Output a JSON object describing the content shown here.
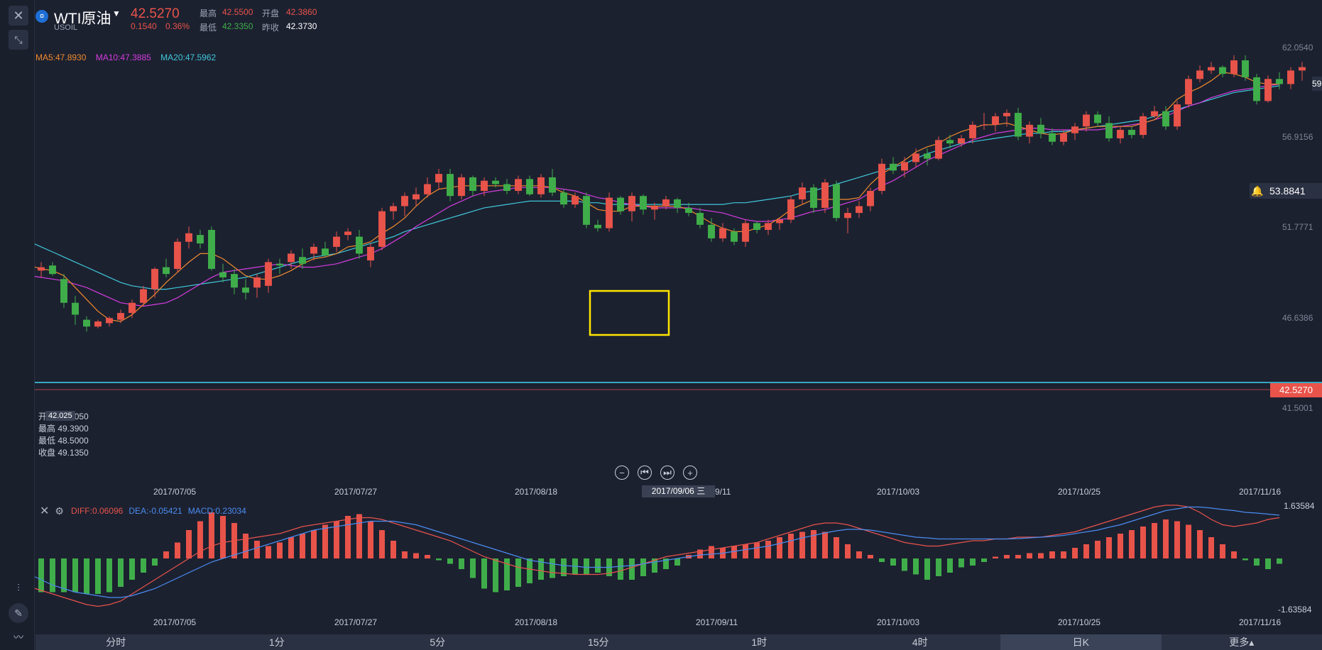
{
  "header": {
    "logo_glyph": "¤",
    "name": "WTI原油",
    "code": "USOIL",
    "price": "42.5270",
    "change": "0.1540",
    "change_pct": "0.36%",
    "stats": [
      {
        "label": "最高",
        "value": "42.5500",
        "color": "#e8534a"
      },
      {
        "label": "开盘",
        "value": "42.3860",
        "color": "#e8534a"
      },
      {
        "label": "最低",
        "value": "42.3350",
        "color": "#3fae4a"
      },
      {
        "label": "昨收",
        "value": "42.3730",
        "color": "#ffffff"
      }
    ]
  },
  "left_toolbar": {
    "icons": [
      "close-icon",
      "collapse-icon",
      "candle-style-icon",
      "pencil-icon",
      "indicator-icon"
    ]
  },
  "ma": {
    "ma5": "MA5:47.8930",
    "ma10": "MA10:47.3885",
    "ma20": "MA20:47.5962",
    "colors": {
      "ma5": "#f08a2c",
      "ma10": "#d53ce0",
      "ma20": "#3fc8da"
    }
  },
  "price_axis": [
    "62.0540",
    "56.9156",
    "51.7771",
    "46.6386",
    "41.5001"
  ],
  "current_price_tag": "42.5270",
  "alert_price": "53.8841",
  "top_tag": "59",
  "crosshair_ohlc": {
    "tag": "42.025",
    "lines": [
      "开盘 49.0050",
      "最高 49.3900",
      "最低 48.5000",
      "收盘 49.1350"
    ]
  },
  "date_axis": [
    "2017/07/05",
    "2017/07/27",
    "2017/08/18",
    "2017/09/11",
    "2017/10/03",
    "2017/10/25",
    "2017/11/16"
  ],
  "date_axis_visible_fragment": "9/11",
  "crosshair_date": "2017/09/06 三",
  "macd": {
    "diff": "DIFF:0.06096",
    "dea": "DEA:-0.05421",
    "macd": "MACD:0.23034",
    "axis_top": "1.63584",
    "axis_bottom": "-1.63584",
    "colors": {
      "diff": "#e8534a",
      "dea": "#4a8cf0",
      "macd": "#4a8cf0"
    }
  },
  "timeframes": [
    {
      "label": "分时",
      "active": false
    },
    {
      "label": "1分",
      "active": false
    },
    {
      "label": "5分",
      "active": false
    },
    {
      "label": "15分",
      "active": false
    },
    {
      "label": "1时",
      "active": false
    },
    {
      "label": "4时",
      "active": false
    },
    {
      "label": "日K",
      "active": true
    },
    {
      "label": "更多▴",
      "active": false
    }
  ],
  "colors": {
    "up": "#e8534a",
    "down": "#3fae4a",
    "bg": "#1c2130",
    "highlight_box": "#ffe600",
    "hline": "#3fd6f0"
  },
  "chart_data": {
    "type": "candlestick",
    "title": "",
    "x_range": [
      "2017/06/20",
      "2017/11/24"
    ],
    "y_range": [
      40.0,
      62.054
    ],
    "candles": [
      [
        49.0,
        49.2,
        48.9,
        49.1
      ],
      [
        49.1,
        49.3,
        48.8,
        48.9
      ],
      [
        48.9,
        49.4,
        48.5,
        49.1
      ],
      [
        49.2,
        49.4,
        48.6,
        48.7
      ],
      [
        48.4,
        48.7,
        46.7,
        47.0
      ],
      [
        47.0,
        47.4,
        45.7,
        46.3
      ],
      [
        46.0,
        46.2,
        45.3,
        45.6
      ],
      [
        45.6,
        46.0,
        45.5,
        45.9
      ],
      [
        45.8,
        46.2,
        45.6,
        46.1
      ],
      [
        46.0,
        46.6,
        45.8,
        46.4
      ],
      [
        46.4,
        47.2,
        46.1,
        47.0
      ],
      [
        47.0,
        48.0,
        46.8,
        47.8
      ],
      [
        47.8,
        49.1,
        47.3,
        49.0
      ],
      [
        49.1,
        49.6,
        48.5,
        48.7
      ],
      [
        49.0,
        50.8,
        48.8,
        50.6
      ],
      [
        50.6,
        51.5,
        50.2,
        51.1
      ],
      [
        51.0,
        51.3,
        50.2,
        50.5
      ],
      [
        51.3,
        51.5,
        48.9,
        49.0
      ],
      [
        48.8,
        49.3,
        48.2,
        48.5
      ],
      [
        48.7,
        49.0,
        47.5,
        47.9
      ],
      [
        47.9,
        48.4,
        47.2,
        47.6
      ],
      [
        47.9,
        48.7,
        47.3,
        48.5
      ],
      [
        48.0,
        49.6,
        47.6,
        49.4
      ],
      [
        49.3,
        49.6,
        48.7,
        49.2
      ],
      [
        49.4,
        50.1,
        49.0,
        49.9
      ],
      [
        49.7,
        50.2,
        49.0,
        49.3
      ],
      [
        49.9,
        50.5,
        49.5,
        50.3
      ],
      [
        50.2,
        50.6,
        49.7,
        49.8
      ],
      [
        50.3,
        51.2,
        50.0,
        50.9
      ],
      [
        51.0,
        51.4,
        50.7,
        51.2
      ],
      [
        50.9,
        51.3,
        49.6,
        49.9
      ],
      [
        49.5,
        50.5,
        49.1,
        50.3
      ],
      [
        50.3,
        52.6,
        50.1,
        52.4
      ],
      [
        52.4,
        52.9,
        51.9,
        52.7
      ],
      [
        52.7,
        53.5,
        52.1,
        53.3
      ],
      [
        53.1,
        53.8,
        52.7,
        53.4
      ],
      [
        53.4,
        54.4,
        53.2,
        54.0
      ],
      [
        54.1,
        54.9,
        53.7,
        54.6
      ],
      [
        54.6,
        54.9,
        53.0,
        53.3
      ],
      [
        53.3,
        54.6,
        53.1,
        54.4
      ],
      [
        54.4,
        54.5,
        53.3,
        53.6
      ],
      [
        53.6,
        54.4,
        53.3,
        54.2
      ],
      [
        54.2,
        54.4,
        53.8,
        54.0
      ],
      [
        54.0,
        54.3,
        53.4,
        53.6
      ],
      [
        53.6,
        54.5,
        53.4,
        54.3
      ],
      [
        54.3,
        54.5,
        53.3,
        53.4
      ],
      [
        53.4,
        54.6,
        53.2,
        54.4
      ],
      [
        54.4,
        54.9,
        53.3,
        53.5
      ],
      [
        53.5,
        53.7,
        52.6,
        52.8
      ],
      [
        52.8,
        53.5,
        52.6,
        53.3
      ],
      [
        53.3,
        53.5,
        51.4,
        51.6
      ],
      [
        51.6,
        51.9,
        51.2,
        51.4
      ],
      [
        51.4,
        53.5,
        51.2,
        53.2
      ],
      [
        53.2,
        53.3,
        52.2,
        52.4
      ],
      [
        52.4,
        53.5,
        51.8,
        53.3
      ],
      [
        53.3,
        53.4,
        52.2,
        52.5
      ],
      [
        52.5,
        52.9,
        51.9,
        52.7
      ],
      [
        52.7,
        53.3,
        52.5,
        53.1
      ],
      [
        53.1,
        53.2,
        52.3,
        52.6
      ],
      [
        52.6,
        52.9,
        52.1,
        52.3
      ],
      [
        52.3,
        52.6,
        51.4,
        51.6
      ],
      [
        51.6,
        52.0,
        50.6,
        50.8
      ],
      [
        50.8,
        51.7,
        50.6,
        51.4
      ],
      [
        51.2,
        51.4,
        50.4,
        50.6
      ],
      [
        50.6,
        51.9,
        50.3,
        51.7
      ],
      [
        51.7,
        51.8,
        51.1,
        51.3
      ],
      [
        51.3,
        51.9,
        51.0,
        51.7
      ],
      [
        51.7,
        52.0,
        51.3,
        51.9
      ],
      [
        51.9,
        53.3,
        51.7,
        53.1
      ],
      [
        53.1,
        54.1,
        52.8,
        53.8
      ],
      [
        53.8,
        54.0,
        52.3,
        52.6
      ],
      [
        52.6,
        54.3,
        52.3,
        54.1
      ],
      [
        54.0,
        54.2,
        51.8,
        52.0
      ],
      [
        52.0,
        52.6,
        51.1,
        52.3
      ],
      [
        52.3,
        53.0,
        52.0,
        52.7
      ],
      [
        52.7,
        53.8,
        52.4,
        53.6
      ],
      [
        53.6,
        55.5,
        53.4,
        55.2
      ],
      [
        55.2,
        55.6,
        54.6,
        54.8
      ],
      [
        54.8,
        55.6,
        54.4,
        55.3
      ],
      [
        55.3,
        56.1,
        55.0,
        55.8
      ],
      [
        55.8,
        56.1,
        55.1,
        55.5
      ],
      [
        55.5,
        56.8,
        55.4,
        56.6
      ],
      [
        56.6,
        56.9,
        56.1,
        56.4
      ],
      [
        56.4,
        56.9,
        56.2,
        56.7
      ],
      [
        56.7,
        57.7,
        56.4,
        57.5
      ],
      [
        57.5,
        58.2,
        57.2,
        57.5
      ],
      [
        57.5,
        58.2,
        57.1,
        58.0
      ],
      [
        58.0,
        58.4,
        57.4,
        58.2
      ],
      [
        58.2,
        58.5,
        56.6,
        56.8
      ],
      [
        56.8,
        57.7,
        56.4,
        57.5
      ],
      [
        57.5,
        57.9,
        56.7,
        57.0
      ],
      [
        57.0,
        57.3,
        56.3,
        56.5
      ],
      [
        56.5,
        57.2,
        56.3,
        57.0
      ],
      [
        57.0,
        57.6,
        56.6,
        57.4
      ],
      [
        57.4,
        58.3,
        57.1,
        58.1
      ],
      [
        58.1,
        58.3,
        57.4,
        57.6
      ],
      [
        57.6,
        58.0,
        56.5,
        56.7
      ],
      [
        56.7,
        57.4,
        56.4,
        57.2
      ],
      [
        57.2,
        57.4,
        56.7,
        56.9
      ],
      [
        56.9,
        58.2,
        56.7,
        58.0
      ],
      [
        58.0,
        58.6,
        57.9,
        58.3
      ],
      [
        58.3,
        58.6,
        57.2,
        57.4
      ],
      [
        57.4,
        58.9,
        57.2,
        58.7
      ],
      [
        58.7,
        60.4,
        58.5,
        60.2
      ],
      [
        60.2,
        61.0,
        60.0,
        60.7
      ],
      [
        60.7,
        61.2,
        60.5,
        60.9
      ],
      [
        60.9,
        61.0,
        60.3,
        60.5
      ],
      [
        60.5,
        61.6,
        60.3,
        61.3
      ],
      [
        61.3,
        61.6,
        60.1,
        60.3
      ],
      [
        60.3,
        60.5,
        58.7,
        58.9
      ],
      [
        58.9,
        60.4,
        58.8,
        60.2
      ],
      [
        60.2,
        60.6,
        59.6,
        59.9
      ],
      [
        59.9,
        60.9,
        59.6,
        60.7
      ],
      [
        60.7,
        61.2,
        60.1,
        60.9
      ]
    ],
    "ma5": [
      49.3,
      49.2,
      49.0,
      48.9,
      48.6,
      47.9,
      47.2,
      46.5,
      46.0,
      45.9,
      46.3,
      46.9,
      47.5,
      48.2,
      48.8,
      49.4,
      49.9,
      49.9,
      49.6,
      49.1,
      48.6,
      48.4,
      48.4,
      48.6,
      48.9,
      49.3,
      49.6,
      49.7,
      49.9,
      50.3,
      50.4,
      50.6,
      51.1,
      51.5,
      52.0,
      52.7,
      53.3,
      53.7,
      53.8,
      53.9,
      53.9,
      53.9,
      53.9,
      53.9,
      53.9,
      53.9,
      53.9,
      53.8,
      53.5,
      53.3,
      52.9,
      52.5,
      52.4,
      52.4,
      52.7,
      52.7,
      52.7,
      52.7,
      52.7,
      52.5,
      52.1,
      51.7,
      51.4,
      51.2,
      51.2,
      51.4,
      51.6,
      52.0,
      52.5,
      52.8,
      53.1,
      53.1,
      53.1,
      53.1,
      53.2,
      54.0,
      54.6,
      55.0,
      55.4,
      55.9,
      56.2,
      56.4,
      56.8,
      57.1,
      57.3,
      57.5,
      57.5,
      57.6,
      57.4,
      57.2,
      57.0,
      56.9,
      57.0,
      57.2,
      57.3,
      57.4,
      57.4,
      57.4,
      57.4,
      57.6,
      57.8,
      58.3,
      59.0,
      59.4,
      59.7,
      60.1,
      60.6,
      60.5,
      60.3,
      60.0,
      59.9,
      59.9
    ],
    "ma10": [
      48.6,
      48.6,
      48.5,
      48.4,
      48.3,
      48.1,
      47.9,
      47.6,
      47.3,
      47.0,
      46.9,
      46.8,
      46.9,
      47.0,
      47.3,
      47.7,
      48.1,
      48.5,
      48.8,
      48.9,
      49.0,
      49.1,
      49.2,
      49.3,
      49.2,
      49.1,
      49.1,
      49.2,
      49.3,
      49.5,
      49.7,
      49.9,
      50.2,
      50.6,
      51.0,
      51.5,
      51.9,
      52.3,
      52.7,
      53.0,
      53.3,
      53.5,
      53.6,
      53.7,
      53.8,
      53.8,
      53.8,
      53.8,
      53.7,
      53.6,
      53.4,
      53.2,
      53.1,
      52.9,
      52.8,
      52.7,
      52.6,
      52.6,
      52.6,
      52.6,
      52.5,
      52.4,
      52.3,
      52.1,
      51.9,
      51.8,
      51.8,
      51.9,
      52.0,
      52.2,
      52.4,
      52.5,
      52.7,
      52.9,
      53.1,
      53.5,
      53.9,
      54.2,
      54.6,
      55.0,
      55.4,
      55.7,
      56.0,
      56.3,
      56.6,
      56.8,
      57.0,
      57.1,
      57.2,
      57.3,
      57.3,
      57.2,
      57.2,
      57.2,
      57.2,
      57.2,
      57.3,
      57.4,
      57.5,
      57.6,
      57.8,
      58.0,
      58.3,
      58.6,
      58.8,
      59.1,
      59.3,
      59.5,
      59.6,
      59.7,
      59.8,
      59.9
    ],
    "ma20": [
      50.9,
      50.6,
      50.3,
      50.0,
      49.7,
      49.4,
      49.1,
      48.8,
      48.5,
      48.2,
      48.0,
      47.9,
      47.8,
      47.8,
      47.9,
      48.0,
      48.1,
      48.2,
      48.3,
      48.4,
      48.5,
      48.7,
      48.9,
      49.1,
      49.3,
      49.5,
      49.7,
      49.8,
      49.9,
      50.1,
      50.3,
      50.5,
      50.7,
      50.9,
      51.2,
      51.4,
      51.6,
      51.8,
      52.0,
      52.2,
      52.4,
      52.6,
      52.7,
      52.8,
      52.9,
      53.0,
      53.0,
      53.0,
      53.0,
      53.0,
      52.9,
      52.9,
      52.8,
      52.8,
      52.8,
      52.8,
      52.8,
      52.8,
      52.8,
      52.8,
      52.8,
      52.8,
      52.8,
      52.9,
      52.9,
      53.0,
      53.1,
      53.2,
      53.3,
      53.5,
      53.6,
      53.8,
      54.0,
      54.2,
      54.4,
      54.6,
      54.8,
      55.0,
      55.2,
      55.5,
      55.8,
      56.0,
      56.2,
      56.4,
      56.5,
      56.6,
      56.7,
      56.8,
      56.9,
      57.0,
      57.0,
      57.1,
      57.1,
      57.2,
      57.3,
      57.4,
      57.5,
      57.6,
      57.7,
      57.8,
      58.0,
      58.2,
      58.4,
      58.6,
      58.8,
      59.0,
      59.2,
      59.4,
      59.5,
      59.6,
      59.7,
      59.8
    ],
    "macd_hist": [
      -0.9,
      -0.95,
      -0.95,
      -0.95,
      -0.95,
      -0.95,
      -1.0,
      -1.0,
      -0.95,
      -0.8,
      -0.6,
      -0.4,
      -0.2,
      0.2,
      0.45,
      0.8,
      1.05,
      1.3,
      1.2,
      1.0,
      0.7,
      0.5,
      0.35,
      0.45,
      0.6,
      0.7,
      0.8,
      0.95,
      1.05,
      1.2,
      1.25,
      1.05,
      0.8,
      0.5,
      0.2,
      0.15,
      0.1,
      -0.05,
      -0.15,
      -0.3,
      -0.55,
      -0.85,
      -0.95,
      -0.9,
      -0.8,
      -0.7,
      -0.6,
      -0.55,
      -0.5,
      -0.45,
      -0.45,
      -0.4,
      -0.5,
      -0.6,
      -0.6,
      -0.5,
      -0.4,
      -0.3,
      -0.2,
      0.1,
      0.25,
      0.35,
      0.3,
      0.35,
      0.4,
      0.45,
      0.5,
      0.6,
      0.7,
      0.75,
      0.8,
      0.75,
      0.6,
      0.4,
      0.2,
      0.1,
      -0.1,
      -0.2,
      -0.35,
      -0.45,
      -0.6,
      -0.5,
      -0.4,
      -0.25,
      -0.2,
      -0.1,
      0.05,
      0.1,
      0.1,
      0.15,
      0.15,
      0.2,
      0.2,
      0.3,
      0.4,
      0.5,
      0.6,
      0.7,
      0.8,
      0.9,
      1.0,
      1.1,
      1.05,
      0.95,
      0.8,
      0.6,
      0.4,
      0.2,
      -0.05,
      -0.2,
      -0.3,
      -0.15
    ],
    "diff": [
      -0.6,
      -0.8,
      -0.9,
      -1.0,
      -1.1,
      -1.2,
      -1.3,
      -1.35,
      -1.3,
      -1.2,
      -1.0,
      -0.8,
      -0.6,
      -0.4,
      -0.2,
      0.0,
      0.2,
      0.35,
      0.45,
      0.5,
      0.55,
      0.6,
      0.65,
      0.7,
      0.8,
      0.9,
      0.95,
      1.0,
      1.05,
      1.1,
      1.15,
      1.15,
      1.1,
      1.0,
      0.9,
      0.8,
      0.7,
      0.6,
      0.5,
      0.35,
      0.2,
      0.05,
      -0.05,
      -0.15,
      -0.25,
      -0.3,
      -0.35,
      -0.4,
      -0.42,
      -0.45,
      -0.45,
      -0.45,
      -0.42,
      -0.35,
      -0.25,
      -0.15,
      -0.05,
      0.05,
      0.1,
      0.15,
      0.2,
      0.25,
      0.3,
      0.35,
      0.4,
      0.45,
      0.55,
      0.65,
      0.75,
      0.85,
      0.95,
      1.0,
      1.0,
      0.95,
      0.85,
      0.75,
      0.65,
      0.55,
      0.45,
      0.4,
      0.35,
      0.35,
      0.4,
      0.45,
      0.5,
      0.5,
      0.55,
      0.55,
      0.6,
      0.6,
      0.6,
      0.65,
      0.7,
      0.75,
      0.85,
      0.95,
      1.05,
      1.15,
      1.25,
      1.35,
      1.45,
      1.5,
      1.5,
      1.45,
      1.3,
      1.1,
      0.95,
      0.9,
      0.95,
      1.0,
      1.1,
      1.15
    ],
    "dea": [
      -0.3,
      -0.45,
      -0.6,
      -0.75,
      -0.85,
      -0.95,
      -1.0,
      -1.05,
      -1.1,
      -1.1,
      -1.05,
      -0.95,
      -0.85,
      -0.7,
      -0.55,
      -0.4,
      -0.25,
      -0.1,
      0.0,
      0.1,
      0.2,
      0.3,
      0.4,
      0.5,
      0.6,
      0.7,
      0.8,
      0.85,
      0.9,
      0.95,
      1.0,
      1.05,
      1.05,
      1.05,
      1.0,
      0.95,
      0.85,
      0.75,
      0.65,
      0.55,
      0.45,
      0.35,
      0.25,
      0.15,
      0.05,
      -0.05,
      -0.1,
      -0.15,
      -0.2,
      -0.22,
      -0.25,
      -0.25,
      -0.25,
      -0.22,
      -0.2,
      -0.15,
      -0.1,
      -0.05,
      0.0,
      0.05,
      0.1,
      0.12,
      0.15,
      0.2,
      0.25,
      0.3,
      0.35,
      0.42,
      0.5,
      0.58,
      0.65,
      0.72,
      0.78,
      0.82,
      0.82,
      0.8,
      0.75,
      0.7,
      0.65,
      0.6,
      0.58,
      0.55,
      0.55,
      0.55,
      0.55,
      0.55,
      0.55,
      0.55,
      0.56,
      0.58,
      0.6,
      0.62,
      0.65,
      0.7,
      0.75,
      0.8,
      0.88,
      0.95,
      1.05,
      1.15,
      1.25,
      1.35,
      1.4,
      1.45,
      1.45,
      1.42,
      1.38,
      1.35,
      1.3,
      1.28,
      1.25,
      1.22
    ]
  }
}
